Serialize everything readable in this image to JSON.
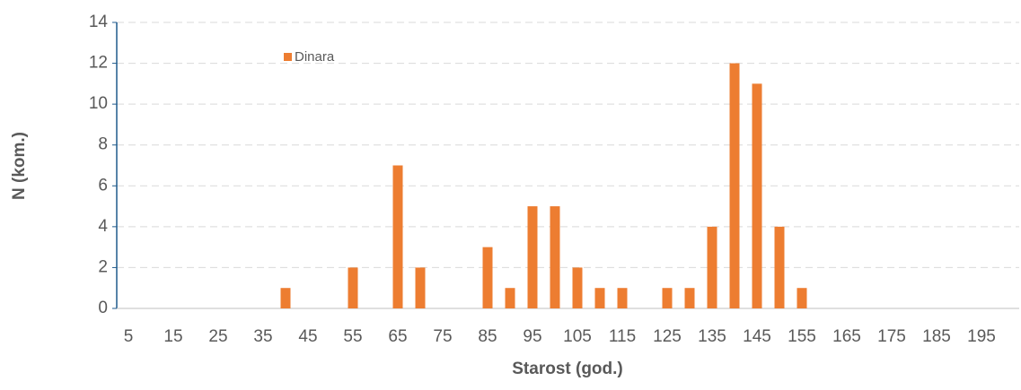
{
  "chart_data": {
    "type": "bar",
    "x_label": "Starost (god.)",
    "y_label": "N (kom.)",
    "categories": [
      "5",
      null,
      "15",
      null,
      "25",
      null,
      "35",
      null,
      "45",
      null,
      "55",
      null,
      "65",
      null,
      "75",
      null,
      "85",
      null,
      "95",
      null,
      "105",
      null,
      "115",
      null,
      "125",
      null,
      "135",
      null,
      "145",
      null,
      "155",
      null,
      "165",
      null,
      "175",
      null,
      "185",
      null,
      "195",
      null
    ],
    "series": [
      {
        "name": "Dinara",
        "color": "#ed7d31",
        "values": [
          0,
          0,
          0,
          0,
          0,
          0,
          0,
          1,
          0,
          0,
          2,
          0,
          7,
          2,
          0,
          0,
          3,
          1,
          5,
          5,
          2,
          1,
          1,
          0,
          1,
          1,
          4,
          12,
          11,
          4,
          1,
          0,
          0,
          0,
          0,
          0,
          0,
          0,
          0,
          0
        ]
      }
    ],
    "ylim": [
      0,
      14
    ],
    "yticks": [
      0,
      2,
      4,
      6,
      8,
      10,
      12,
      14
    ],
    "grid": true
  }
}
